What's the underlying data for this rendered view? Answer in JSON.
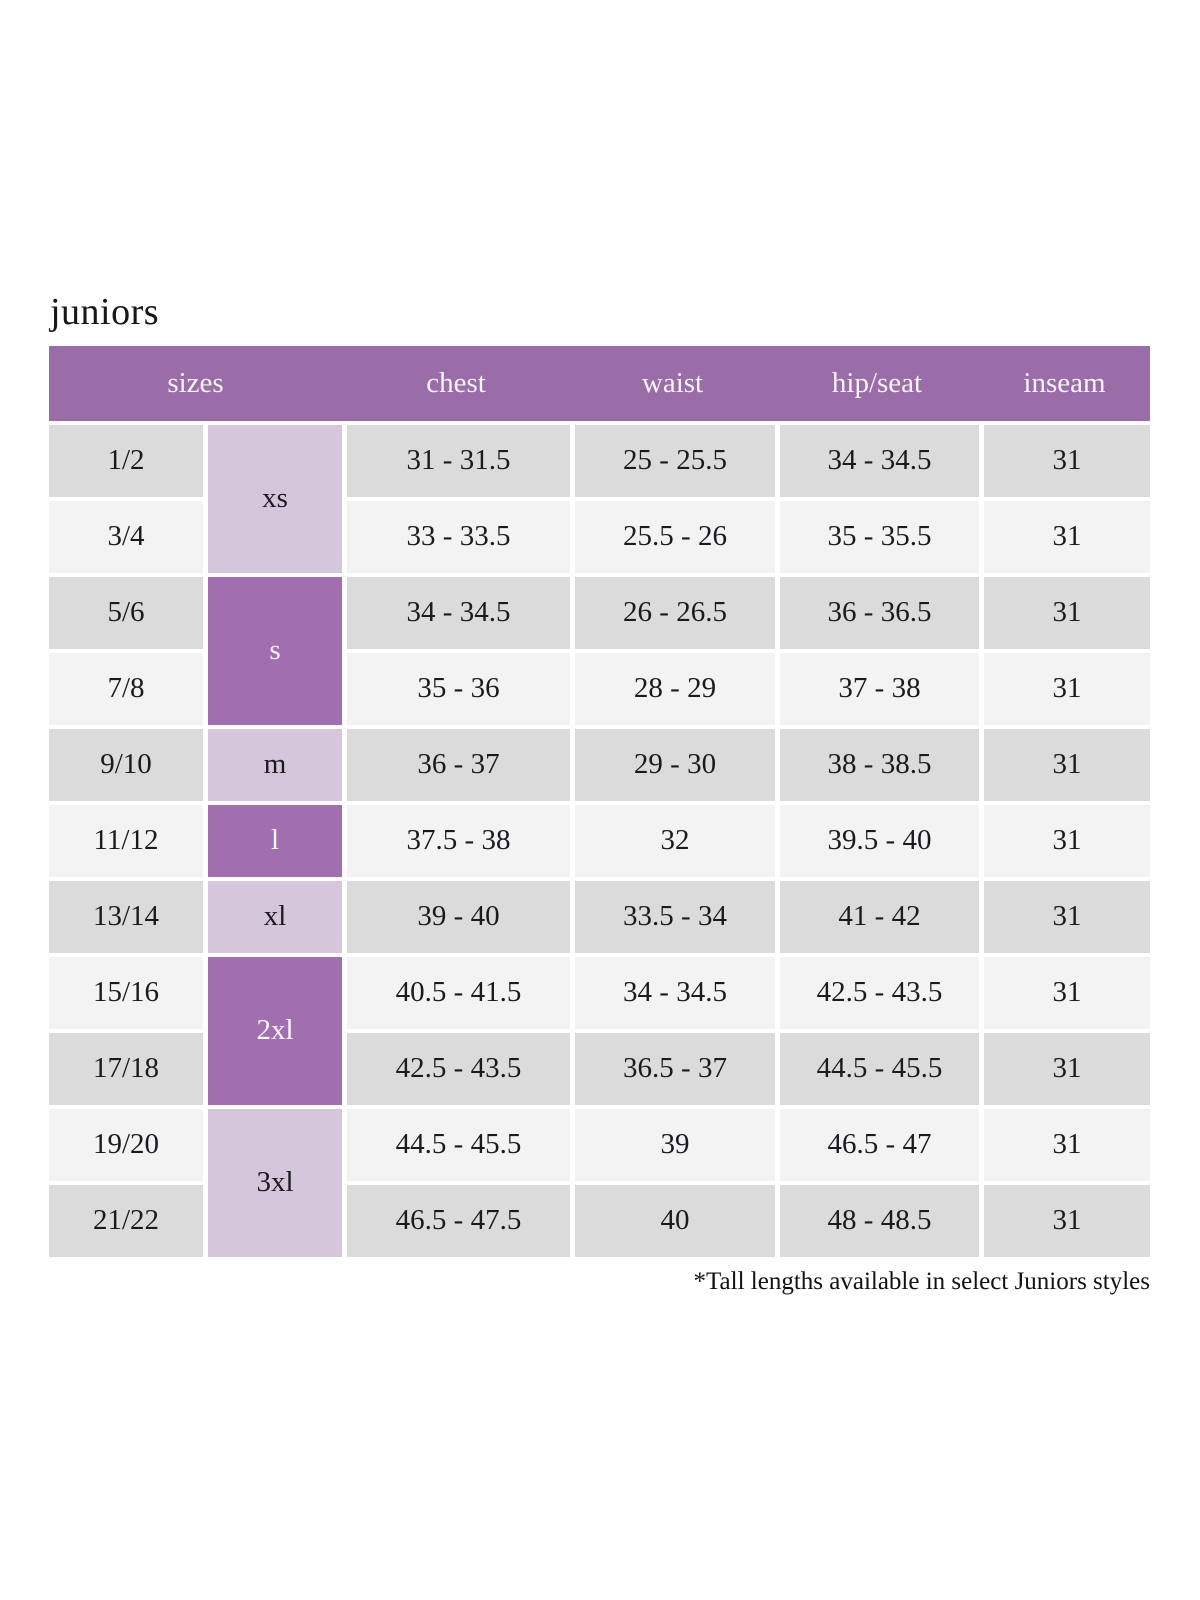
{
  "page": {
    "title": "juniors",
    "footnote": "*Tall lengths available in select Juniors styles"
  },
  "colors": {
    "page_bg": "#ffffff",
    "header_bg": "#9a6ca8",
    "header_text": "#f7f4f9",
    "group_dark_bg": "#a16fb0",
    "group_dark_text": "#fbf8fc",
    "group_light_bg": "#d6c6dc",
    "row_dark_bg": "#dcdbdc",
    "row_light_bg": "#f4f3f4",
    "cell_text": "#1d1a1f"
  },
  "table": {
    "headers": [
      "sizes",
      "chest",
      "waist",
      "hip/seat",
      "inseam"
    ],
    "size_groups": [
      {
        "label": "xs",
        "spans_rows": 2,
        "tone": "light"
      },
      {
        "label": "s",
        "spans_rows": 2,
        "tone": "dark"
      },
      {
        "label": "m",
        "spans_rows": 1,
        "tone": "light"
      },
      {
        "label": "l",
        "spans_rows": 1,
        "tone": "dark"
      },
      {
        "label": "xl",
        "spans_rows": 1,
        "tone": "light"
      },
      {
        "label": "2xl",
        "spans_rows": 2,
        "tone": "dark"
      },
      {
        "label": "3xl",
        "spans_rows": 2,
        "tone": "light"
      }
    ],
    "rows": [
      {
        "size": "1/2",
        "chest": "31 - 31.5",
        "waist": "25 - 25.5",
        "hip_seat": "34 - 34.5",
        "inseam": "31"
      },
      {
        "size": "3/4",
        "chest": "33 - 33.5",
        "waist": "25.5 - 26",
        "hip_seat": "35 - 35.5",
        "inseam": "31"
      },
      {
        "size": "5/6",
        "chest": "34 - 34.5",
        "waist": "26 - 26.5",
        "hip_seat": "36 - 36.5",
        "inseam": "31"
      },
      {
        "size": "7/8",
        "chest": "35 - 36",
        "waist": "28 - 29",
        "hip_seat": "37 - 38",
        "inseam": "31"
      },
      {
        "size": "9/10",
        "chest": "36 - 37",
        "waist": "29 - 30",
        "hip_seat": "38 - 38.5",
        "inseam": "31"
      },
      {
        "size": "11/12",
        "chest": "37.5 - 38",
        "waist": "32",
        "hip_seat": "39.5 - 40",
        "inseam": "31"
      },
      {
        "size": "13/14",
        "chest": "39 - 40",
        "waist": "33.5 - 34",
        "hip_seat": "41 - 42",
        "inseam": "31"
      },
      {
        "size": "15/16",
        "chest": "40.5 - 41.5",
        "waist": "34 - 34.5",
        "hip_seat": "42.5 - 43.5",
        "inseam": "31"
      },
      {
        "size": "17/18",
        "chest": "42.5 - 43.5",
        "waist": "36.5 - 37",
        "hip_seat": "44.5 - 45.5",
        "inseam": "31"
      },
      {
        "size": "19/20",
        "chest": "44.5 - 45.5",
        "waist": "39",
        "hip_seat": "46.5 - 47",
        "inseam": "31"
      },
      {
        "size": "21/22",
        "chest": "46.5 - 47.5",
        "waist": "40",
        "hip_seat": "48 - 48.5",
        "inseam": "31"
      }
    ]
  }
}
